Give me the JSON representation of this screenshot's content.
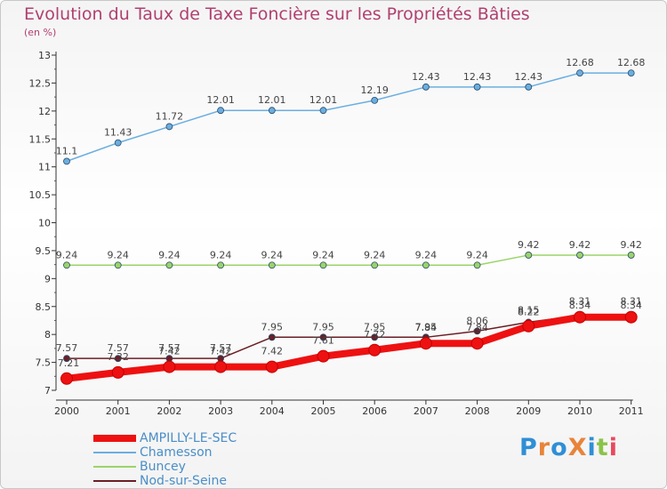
{
  "title": "Evolution du Taux de Taxe Foncière sur les Propriétés Bâties",
  "unit_label": "(en %)",
  "logo": {
    "text": "ProXiti",
    "colors": [
      "#2f8fd6",
      "#e8843a",
      "#2f8fd6",
      "#e8843a",
      "#2f8fd6",
      "#8bc34a",
      "#e84a5f"
    ]
  },
  "chart_data": {
    "type": "line",
    "title": "Evolution du Taux de Taxe Foncière sur les Propriétés Bâties",
    "ylabel": "(en %)",
    "xlabel": "",
    "ylim": [
      7,
      13
    ],
    "yticks": [
      7,
      7.5,
      8,
      8.5,
      9,
      9.5,
      10,
      10.5,
      11,
      11.5,
      12,
      12.5,
      13
    ],
    "grid": false,
    "legend_position": "bottom-left",
    "x": [
      "2000",
      "2001",
      "2002",
      "2003",
      "2004",
      "2005",
      "2006",
      "2007",
      "2008",
      "2009",
      "2010",
      "2011"
    ],
    "series": [
      {
        "name": "AMPILLY-LE-SEC",
        "color": "#ee1111",
        "values": [
          7.21,
          7.32,
          7.42,
          7.42,
          7.42,
          7.61,
          7.72,
          7.84,
          7.84,
          8.15,
          8.31,
          8.31
        ],
        "labels": [
          "7.21",
          "7.32",
          "7.42",
          "7.42",
          "7.42",
          "7.61",
          "7.72",
          "7.84",
          "7.84",
          "8.15",
          "8.31",
          "8.31"
        ]
      },
      {
        "name": "Chamesson",
        "color": "#6aaee0",
        "values": [
          11.1,
          11.43,
          11.72,
          12.01,
          12.01,
          12.01,
          12.19,
          12.43,
          12.43,
          12.43,
          12.68,
          12.68
        ],
        "labels": [
          "11.1",
          "11.43",
          "11.72",
          "12.01",
          "12.01",
          "12.01",
          "12.19",
          "12.43",
          "12.43",
          "12.43",
          "12.68",
          "12.68"
        ]
      },
      {
        "name": "Buncey",
        "color": "#9ad46a",
        "values": [
          9.24,
          9.24,
          9.24,
          9.24,
          9.24,
          9.24,
          9.24,
          9.24,
          9.24,
          9.42,
          9.42,
          9.42
        ],
        "labels": [
          "9.24",
          "9.24",
          "9.24",
          "9.24",
          "9.24",
          "9.24",
          "9.24",
          "9.24",
          "9.24",
          "9.42",
          "9.42",
          "9.42"
        ]
      },
      {
        "name": "Nod-sur-Seine",
        "color": "#6b1e25",
        "values": [
          7.57,
          7.57,
          7.57,
          7.57,
          7.95,
          7.95,
          7.95,
          7.95,
          8.06,
          8.22,
          8.34,
          8.34
        ],
        "labels": [
          "7.57",
          "7.57",
          "7.57",
          "7.57",
          "7.95",
          "7.95",
          "7.95",
          "7.95",
          "8.06",
          "8.22",
          "8.34",
          "8.34"
        ]
      }
    ]
  }
}
